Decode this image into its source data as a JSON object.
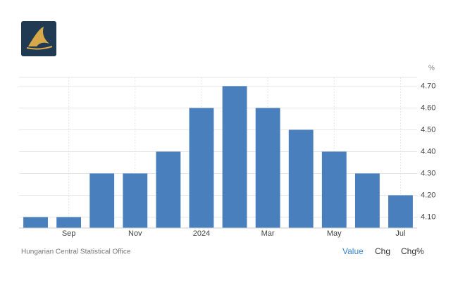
{
  "chart_data": {
    "type": "bar",
    "unit": "%",
    "source": "Hungarian Central Statistical Office",
    "buttons": [
      "Value",
      "Chg",
      "Chg%"
    ],
    "categories": [
      null,
      "Sep",
      null,
      "Nov",
      null,
      "2024",
      null,
      "Mar",
      null,
      "May",
      null,
      "Jul"
    ],
    "values": [
      4.1,
      4.1,
      4.3,
      4.3,
      4.4,
      4.6,
      4.7,
      4.6,
      4.5,
      4.4,
      4.3,
      4.2
    ],
    "color": "#4a7fbd",
    "ylim": [
      4.05,
      4.74
    ],
    "yticks": [
      {
        "value": 4.1,
        "label": "4.10"
      },
      {
        "value": 4.2,
        "label": "4.20"
      },
      {
        "value": 4.3,
        "label": "4.30"
      },
      {
        "value": 4.4,
        "label": "4.40"
      },
      {
        "value": 4.5,
        "label": "4.50"
      },
      {
        "value": 4.6,
        "label": "4.60"
      },
      {
        "value": 4.7,
        "label": "4.70"
      }
    ],
    "grid": true
  }
}
